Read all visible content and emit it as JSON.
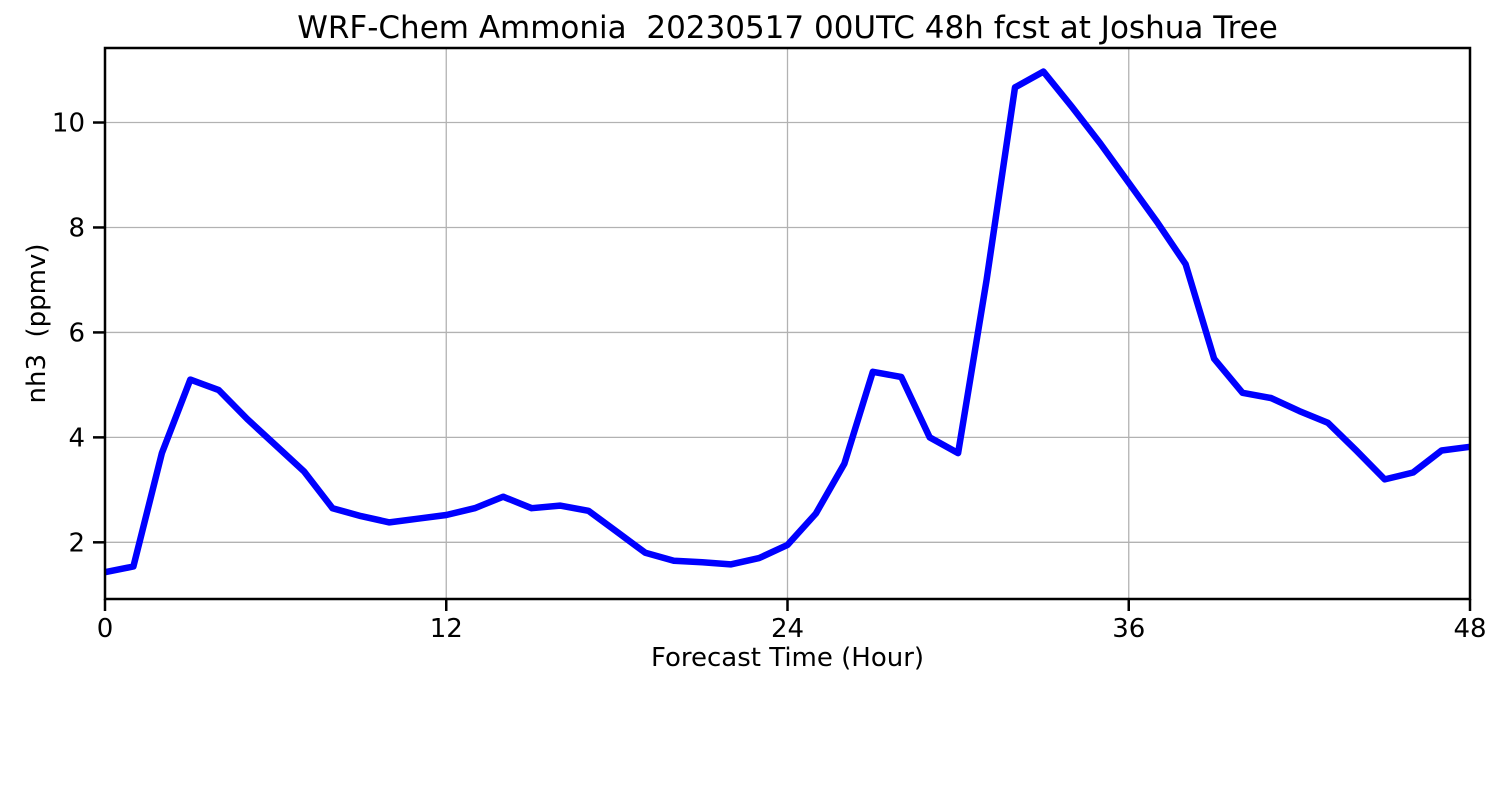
{
  "title": "WRF-Chem Ammonia  20230517 00UTC 48h fcst at Joshua Tree",
  "chart_data": {
    "type": "line",
    "title": "WRF-Chem Ammonia  20230517 00UTC 48h fcst at Joshua Tree",
    "xlabel": "Forecast Time (Hour)",
    "ylabel": "nh3  (ppmv)",
    "x": [
      0,
      1,
      2,
      3,
      4,
      5,
      6,
      7,
      8,
      9,
      10,
      11,
      12,
      13,
      14,
      15,
      16,
      17,
      18,
      19,
      20,
      21,
      22,
      23,
      24,
      25,
      26,
      27,
      28,
      29,
      30,
      31,
      32,
      33,
      34,
      35,
      36,
      37,
      38,
      39,
      40,
      41,
      42,
      43,
      44,
      45,
      46,
      47,
      48
    ],
    "series": [
      {
        "name": "nh3 (ppmv)",
        "color": "#0000ff",
        "linewidth": 6.5,
        "values": [
          1.43,
          1.54,
          3.7,
          5.1,
          4.9,
          4.35,
          3.85,
          3.35,
          2.65,
          2.5,
          2.38,
          2.45,
          2.52,
          2.65,
          2.87,
          2.65,
          2.7,
          2.6,
          2.2,
          1.8,
          1.65,
          1.62,
          1.58,
          1.7,
          1.95,
          2.55,
          3.5,
          5.25,
          5.15,
          4.0,
          3.7,
          7.0,
          10.67,
          10.97,
          10.3,
          9.6,
          8.85,
          8.1,
          7.3,
          5.5,
          4.85,
          4.75,
          4.5,
          4.28,
          3.75,
          3.2,
          3.33,
          3.75,
          3.82
        ]
      }
    ],
    "xticks": [
      0,
      12,
      24,
      36,
      48
    ],
    "yticks": [
      2,
      4,
      6,
      8,
      10
    ],
    "xlim": [
      0,
      48
    ],
    "ylim": [
      0.92,
      11.42
    ],
    "grid": true,
    "grid_color": "#b2b2b2",
    "axis_color": "#000000",
    "background": "#ffffff",
    "legend_position": "none"
  }
}
